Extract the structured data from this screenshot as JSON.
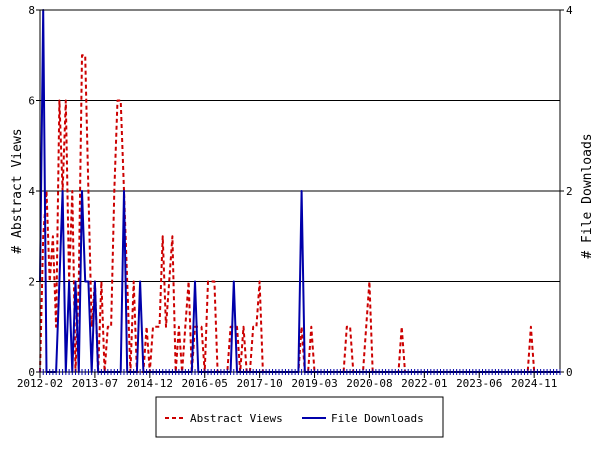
{
  "chart_data": {
    "type": "line",
    "title": "",
    "ylabel": "# Abstract Views",
    "y2label": "# File Downloads",
    "ylim": [
      0,
      8
    ],
    "y2lim": [
      0,
      4
    ],
    "yticks": [
      "0",
      "2",
      "4",
      "6",
      "8"
    ],
    "y2ticks": [
      "0",
      "2",
      "4"
    ],
    "xticks": [
      "2012-02",
      "2013-07",
      "2014-12",
      "2016-05",
      "2017-10",
      "2019-03",
      "2020-08",
      "2022-01",
      "2023-06",
      "2024-11"
    ],
    "xrange": [
      "2012-02",
      "2025-07"
    ],
    "legend_position": "bottom-center",
    "colors": {
      "views": "#cc0000",
      "downloads": "#0000aa"
    },
    "series": [
      {
        "name": "Abstract Views",
        "axis": "left",
        "style": "dashed",
        "points": [
          [
            "2012-02",
            0
          ],
          [
            "2012-03",
            3
          ],
          [
            "2012-04",
            4
          ],
          [
            "2012-05",
            2
          ],
          [
            "2012-06",
            3
          ],
          [
            "2012-07",
            1
          ],
          [
            "2012-08",
            6
          ],
          [
            "2012-09",
            4
          ],
          [
            "2012-10",
            6
          ],
          [
            "2012-11",
            2
          ],
          [
            "2012-12",
            4
          ],
          [
            "2013-01",
            0
          ],
          [
            "2013-02",
            2
          ],
          [
            "2013-03",
            7
          ],
          [
            "2013-04",
            7
          ],
          [
            "2013-05",
            4
          ],
          [
            "2013-06",
            1
          ],
          [
            "2013-07",
            2
          ],
          [
            "2013-08",
            0
          ],
          [
            "2013-09",
            2
          ],
          [
            "2013-10",
            0
          ],
          [
            "2013-11",
            1
          ],
          [
            "2013-12",
            1
          ],
          [
            "2014-01",
            4
          ],
          [
            "2014-02",
            6
          ],
          [
            "2014-03",
            6
          ],
          [
            "2014-04",
            4
          ],
          [
            "2014-05",
            2
          ],
          [
            "2014-06",
            0
          ],
          [
            "2014-07",
            2
          ],
          [
            "2014-08",
            0
          ],
          [
            "2014-09",
            0
          ],
          [
            "2014-10",
            0
          ],
          [
            "2014-11",
            1
          ],
          [
            "2014-12",
            0
          ],
          [
            "2015-01",
            1
          ],
          [
            "2015-02",
            1
          ],
          [
            "2015-03",
            1
          ],
          [
            "2015-04",
            3
          ],
          [
            "2015-05",
            1
          ],
          [
            "2015-06",
            2
          ],
          [
            "2015-07",
            3
          ],
          [
            "2015-08",
            0
          ],
          [
            "2015-09",
            1
          ],
          [
            "2015-10",
            0
          ],
          [
            "2015-11",
            1
          ],
          [
            "2015-12",
            2
          ],
          [
            "2016-01",
            0
          ],
          [
            "2016-02",
            1
          ],
          [
            "2016-03",
            1
          ],
          [
            "2016-04",
            1
          ],
          [
            "2016-05",
            0
          ],
          [
            "2016-06",
            2
          ],
          [
            "2016-07",
            2
          ],
          [
            "2016-08",
            2
          ],
          [
            "2016-09",
            0
          ],
          [
            "2016-10",
            0
          ],
          [
            "2016-11",
            0
          ],
          [
            "2016-12",
            0
          ],
          [
            "2017-01",
            1
          ],
          [
            "2017-02",
            1
          ],
          [
            "2017-03",
            1
          ],
          [
            "2017-04",
            0
          ],
          [
            "2017-05",
            1
          ],
          [
            "2017-06",
            0
          ],
          [
            "2017-07",
            0
          ],
          [
            "2017-08",
            1
          ],
          [
            "2017-09",
            1
          ],
          [
            "2017-10",
            2
          ],
          [
            "2017-11",
            0
          ],
          [
            "2017-12",
            0
          ],
          [
            "2018-01",
            0
          ],
          [
            "2018-02",
            0
          ],
          [
            "2018-03",
            0
          ],
          [
            "2018-04",
            0
          ],
          [
            "2018-05",
            0
          ],
          [
            "2018-06",
            0
          ],
          [
            "2018-07",
            0
          ],
          [
            "2018-08",
            0
          ],
          [
            "2018-09",
            0
          ],
          [
            "2018-10",
            0
          ],
          [
            "2018-11",
            1
          ],
          [
            "2018-12",
            0
          ],
          [
            "2019-01",
            0
          ],
          [
            "2019-02",
            1
          ],
          [
            "2019-03",
            0
          ],
          [
            "2019-04",
            0
          ],
          [
            "2019-05",
            0
          ],
          [
            "2019-06",
            0
          ],
          [
            "2019-07",
            0
          ],
          [
            "2019-08",
            0
          ],
          [
            "2019-09",
            0
          ],
          [
            "2019-10",
            0
          ],
          [
            "2019-11",
            0
          ],
          [
            "2019-12",
            0
          ],
          [
            "2020-01",
            1
          ],
          [
            "2020-02",
            1
          ],
          [
            "2020-03",
            0
          ],
          [
            "2020-04",
            0
          ],
          [
            "2020-05",
            0
          ],
          [
            "2020-06",
            0
          ],
          [
            "2020-07",
            1
          ],
          [
            "2020-08",
            2
          ],
          [
            "2020-09",
            0
          ],
          [
            "2020-10",
            0
          ],
          [
            "2020-11",
            0
          ],
          [
            "2020-12",
            0
          ],
          [
            "2021-01",
            0
          ],
          [
            "2021-02",
            0
          ],
          [
            "2021-03",
            0
          ],
          [
            "2021-04",
            0
          ],
          [
            "2021-05",
            0
          ],
          [
            "2021-06",
            1
          ],
          [
            "2021-07",
            0
          ],
          [
            "2021-08",
            0
          ],
          [
            "2021-09",
            0
          ],
          [
            "2021-10",
            0
          ],
          [
            "2021-11",
            0
          ],
          [
            "2021-12",
            0
          ],
          [
            "2022-01",
            0
          ],
          [
            "2022-06",
            0
          ],
          [
            "2023-01",
            0
          ],
          [
            "2023-06",
            0
          ],
          [
            "2024-01",
            0
          ],
          [
            "2024-06",
            0
          ],
          [
            "2024-09",
            0
          ],
          [
            "2024-10",
            1
          ],
          [
            "2024-11",
            0
          ],
          [
            "2025-01",
            0
          ],
          [
            "2025-07",
            0
          ]
        ]
      },
      {
        "name": "File Downloads",
        "axis": "right",
        "style": "solid",
        "points": [
          [
            "2012-02",
            1
          ],
          [
            "2012-03",
            4
          ],
          [
            "2012-04",
            0
          ],
          [
            "2012-05",
            0
          ],
          [
            "2012-06",
            0
          ],
          [
            "2012-07",
            0
          ],
          [
            "2012-08",
            1
          ],
          [
            "2012-09",
            2
          ],
          [
            "2012-10",
            0
          ],
          [
            "2012-11",
            1
          ],
          [
            "2012-12",
            0
          ],
          [
            "2013-01",
            1
          ],
          [
            "2013-02",
            0
          ],
          [
            "2013-03",
            2
          ],
          [
            "2013-04",
            1
          ],
          [
            "2013-05",
            1
          ],
          [
            "2013-06",
            0
          ],
          [
            "2013-07",
            1
          ],
          [
            "2013-08",
            0
          ],
          [
            "2013-09",
            0
          ],
          [
            "2013-10",
            0
          ],
          [
            "2013-11",
            0
          ],
          [
            "2013-12",
            0
          ],
          [
            "2014-01",
            0
          ],
          [
            "2014-02",
            0
          ],
          [
            "2014-03",
            0
          ],
          [
            "2014-04",
            2
          ],
          [
            "2014-05",
            0
          ],
          [
            "2014-06",
            0
          ],
          [
            "2014-07",
            0
          ],
          [
            "2014-08",
            0
          ],
          [
            "2014-09",
            1
          ],
          [
            "2014-10",
            0
          ],
          [
            "2014-11",
            0
          ],
          [
            "2014-12",
            0
          ],
          [
            "2015-01",
            0
          ],
          [
            "2015-06",
            0
          ],
          [
            "2016-01",
            0
          ],
          [
            "2016-02",
            1
          ],
          [
            "2016-03",
            0
          ],
          [
            "2016-04",
            0
          ],
          [
            "2016-05",
            0
          ],
          [
            "2016-10",
            0
          ],
          [
            "2017-01",
            0
          ],
          [
            "2017-02",
            1
          ],
          [
            "2017-03",
            0
          ],
          [
            "2017-04",
            0
          ],
          [
            "2017-10",
            0
          ],
          [
            "2018-06",
            0
          ],
          [
            "2018-10",
            0
          ],
          [
            "2018-11",
            2
          ],
          [
            "2018-12",
            0
          ],
          [
            "2019-01",
            0
          ],
          [
            "2019-06",
            0
          ],
          [
            "2020-01",
            0
          ],
          [
            "2021-01",
            0
          ],
          [
            "2022-01",
            0
          ],
          [
            "2023-01",
            0
          ],
          [
            "2024-01",
            0
          ],
          [
            "2025-01",
            0
          ],
          [
            "2025-07",
            0
          ]
        ]
      }
    ]
  }
}
